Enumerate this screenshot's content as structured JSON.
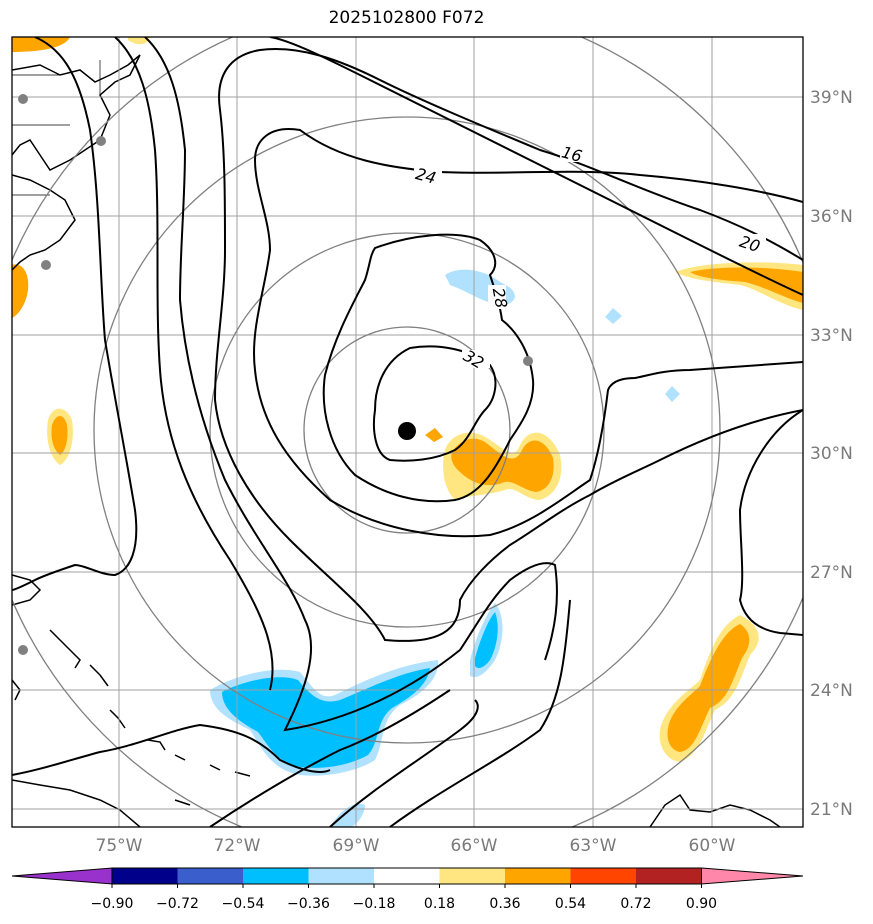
{
  "title": "2025102800 F072",
  "map": {
    "lat_labels": [
      "39°N",
      "36°N",
      "33°N",
      "30°N",
      "27°N",
      "24°N",
      "21°N"
    ],
    "lon_labels": [
      "75°W",
      "72°W",
      "69°W",
      "66°W",
      "63°W",
      "60°W"
    ],
    "contour_labels": [
      "16",
      "20",
      "24",
      "28",
      "32"
    ],
    "center_marker": {
      "lon": -67.7,
      "lat": 30.5
    },
    "colors": {
      "land": "#000000",
      "grid": "#a0a0a0",
      "rings": "#808080",
      "contour": "#000000"
    }
  },
  "colorbar": {
    "ticks": [
      "−0.90",
      "−0.72",
      "−0.54",
      "−0.36",
      "−0.18",
      "0.18",
      "0.36",
      "0.54",
      "0.72",
      "0.90"
    ],
    "colors": [
      "#9932cc",
      "#00008b",
      "#3a5fcd",
      "#00bfff",
      "#b0e2ff",
      "#ffffff",
      "#ffe680",
      "#ffa500",
      "#ff4500",
      "#b22222",
      "#ff88aa"
    ]
  }
}
